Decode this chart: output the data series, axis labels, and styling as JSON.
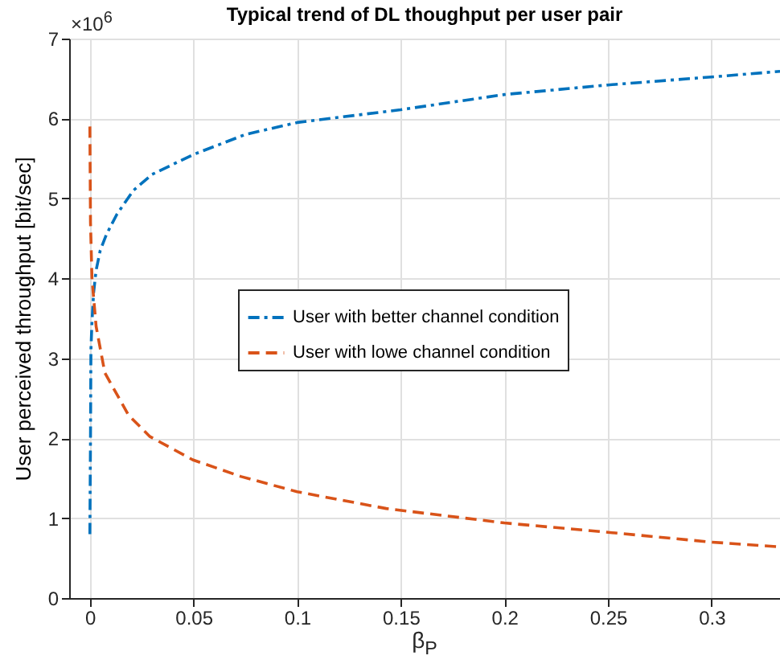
{
  "chart_data": {
    "type": "line",
    "title": "Typical trend of DL thoughput per user pair",
    "xlabel": "β$_{P}$",
    "ylabel": "User perceived throughput [bit/sec]",
    "annotations": [
      "×10$^{6}$"
    ],
    "xlim": [
      -0.01,
      0.333
    ],
    "xticks": [
      0,
      0.05,
      0.1,
      0.15,
      0.2,
      0.25,
      0.3
    ],
    "ylim": [
      0,
      7
    ],
    "yticks": [
      0,
      1,
      2,
      3,
      4,
      5,
      6,
      7
    ],
    "grid": true,
    "legend": "center",
    "marker": "none",
    "series": [
      {
        "name": "User with better channel condition",
        "color": "#0072bd",
        "line_style": "dashdot",
        "x": [
          0,
          0.0003,
          0.0005,
          0.001,
          0.0018,
          0.003,
          0.005,
          0.008,
          0.013,
          0.021,
          0.03,
          0.05,
          0.075,
          0.1,
          0.15,
          0.2,
          0.25,
          0.3,
          0.333
        ],
        "values": [
          0.8,
          2.0,
          3.1,
          3.45,
          3.82,
          4.1,
          4.35,
          4.55,
          4.8,
          5.1,
          5.3,
          5.55,
          5.8,
          5.95,
          6.11,
          6.3,
          6.42,
          6.52,
          6.59
        ]
      },
      {
        "name": "User with lowe channel condition",
        "color": "#d95319",
        "line_style": "dashed",
        "x": [
          0,
          0.0003,
          0.001,
          0.003,
          0.0072,
          0.0186,
          0.029,
          0.0496,
          0.073,
          0.1,
          0.143,
          0.2,
          0.251,
          0.3,
          0.333
        ],
        "values": [
          5.9,
          4.7,
          4.0,
          3.4,
          2.82,
          2.29,
          2.02,
          1.73,
          1.52,
          1.33,
          1.12,
          0.94,
          0.82,
          0.7,
          0.64
        ]
      }
    ]
  }
}
